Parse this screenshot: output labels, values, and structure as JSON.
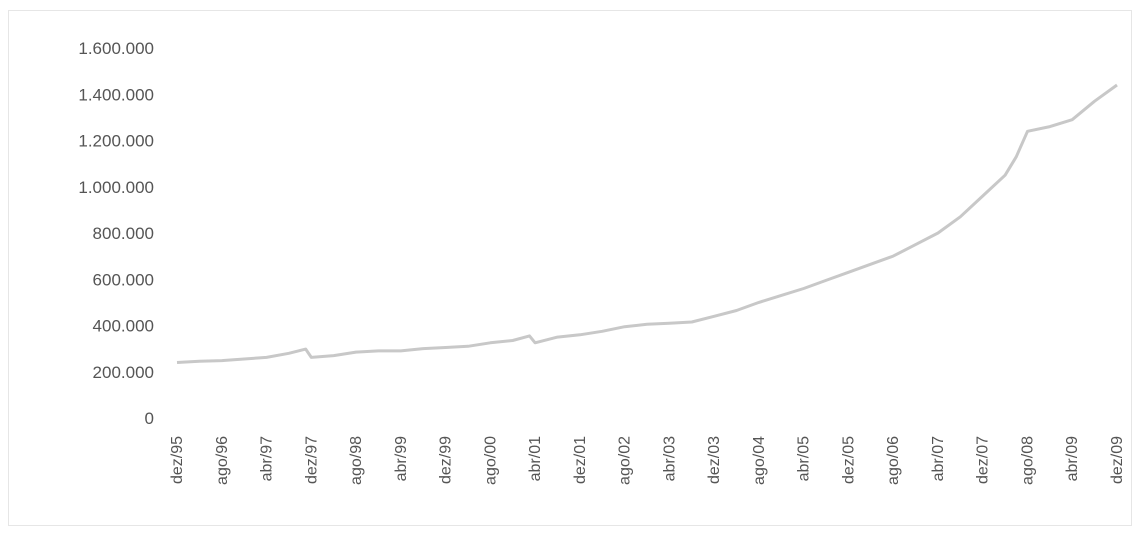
{
  "chart_data": {
    "type": "line",
    "title": "",
    "xlabel": "",
    "ylabel": "",
    "ylim": [
      0,
      1600000
    ],
    "y_ticks": [
      0,
      200000,
      400000,
      600000,
      800000,
      1000000,
      1200000,
      1400000,
      1600000
    ],
    "y_tick_labels": [
      "0",
      "200.000",
      "400.000",
      "600.000",
      "800.000",
      "1.000.000",
      "1.200.000",
      "1.400.000",
      "1.600.000"
    ],
    "x_tick_labels": [
      "dez/95",
      "ago/96",
      "abr/97",
      "dez/97",
      "ago/98",
      "abr/99",
      "dez/99",
      "ago/00",
      "abr/01",
      "dez/01",
      "ago/02",
      "abr/03",
      "dez/03",
      "ago/04",
      "abr/05",
      "dez/05",
      "ago/06",
      "abr/07",
      "dez/07",
      "ago/08",
      "abr/09",
      "dez/09"
    ],
    "grid": false,
    "legend": "none",
    "line_color": "#c8c8c8",
    "series": [
      {
        "x": [
          "dez/95",
          "abr/96",
          "ago/96",
          "dez/96",
          "abr/97",
          "ago/97",
          "nov/97",
          "dez/97",
          "abr/98",
          "ago/98",
          "dez/98",
          "abr/99",
          "ago/99",
          "dez/99",
          "abr/00",
          "ago/00",
          "dez/00",
          "mar/01",
          "abr/01",
          "ago/01",
          "dez/01",
          "abr/02",
          "ago/02",
          "dez/02",
          "abr/03",
          "ago/03",
          "dez/03",
          "abr/04",
          "ago/04",
          "dez/04",
          "abr/05",
          "ago/05",
          "dez/05",
          "abr/06",
          "ago/06",
          "dez/06",
          "abr/07",
          "ago/07",
          "dez/07",
          "abr/08",
          "jun/08",
          "ago/08",
          "dez/08",
          "abr/09",
          "ago/09",
          "dez/09"
        ],
        "values": [
          240000,
          245000,
          248000,
          255000,
          262000,
          280000,
          298000,
          262000,
          270000,
          285000,
          290000,
          290000,
          300000,
          305000,
          310000,
          325000,
          335000,
          355000,
          325000,
          350000,
          360000,
          375000,
          395000,
          405000,
          410000,
          415000,
          440000,
          465000,
          500000,
          530000,
          560000,
          595000,
          630000,
          665000,
          700000,
          750000,
          800000,
          870000,
          960000,
          1050000,
          1130000,
          1240000,
          1260000,
          1290000,
          1370000,
          1440000
        ]
      }
    ]
  }
}
